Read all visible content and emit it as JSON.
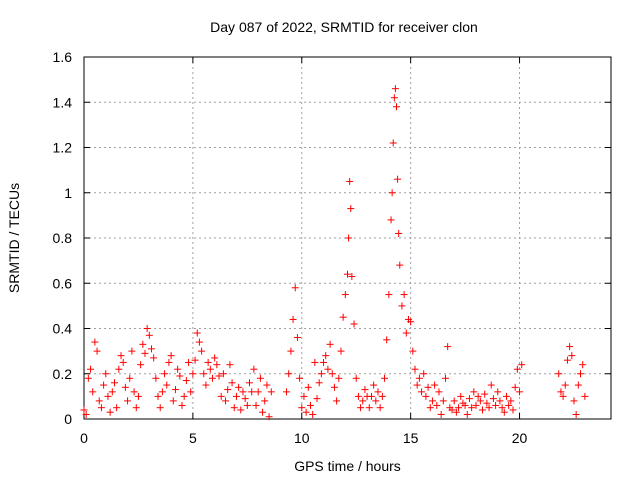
{
  "chart_data": {
    "type": "scatter",
    "title": "Day 087 of 2022, SRMTID for receiver clon",
    "xlabel": "GPS time / hours",
    "ylabel": "SRMTID / TECUs",
    "xlim": [
      0,
      24.2
    ],
    "ylim": [
      0,
      1.6
    ],
    "xticks": [
      0,
      5,
      10,
      15,
      20
    ],
    "xtick_labels": [
      "0",
      "5",
      "10",
      "15",
      "20"
    ],
    "yticks": [
      0,
      0.2,
      0.4,
      0.6,
      0.8,
      1.0,
      1.2,
      1.4,
      1.6
    ],
    "ytick_labels": [
      "0",
      "0.2",
      "0.4",
      "0.6",
      "0.8",
      "1",
      "1.2",
      "1.4",
      "1.6"
    ],
    "grid": true,
    "marker": "+",
    "color": "#ff0000",
    "series": [
      {
        "name": "SRMTID",
        "points": [
          [
            0.0,
            0.04
          ],
          [
            0.1,
            0.02
          ],
          [
            0.2,
            0.18
          ],
          [
            0.3,
            0.22
          ],
          [
            0.4,
            0.12
          ],
          [
            0.5,
            0.34
          ],
          [
            0.6,
            0.3
          ],
          [
            0.7,
            0.08
          ],
          [
            0.8,
            0.05
          ],
          [
            0.9,
            0.15
          ],
          [
            1.0,
            0.2
          ],
          [
            1.1,
            0.1
          ],
          [
            1.2,
            0.03
          ],
          [
            1.3,
            0.12
          ],
          [
            1.4,
            0.16
          ],
          [
            1.5,
            0.05
          ],
          [
            1.6,
            0.22
          ],
          [
            1.7,
            0.28
          ],
          [
            1.8,
            0.25
          ],
          [
            1.9,
            0.14
          ],
          [
            2.0,
            0.08
          ],
          [
            2.1,
            0.18
          ],
          [
            2.2,
            0.3
          ],
          [
            2.3,
            0.12
          ],
          [
            2.4,
            0.05
          ],
          [
            2.5,
            0.1
          ],
          [
            2.6,
            0.24
          ],
          [
            2.7,
            0.33
          ],
          [
            2.8,
            0.29
          ],
          [
            2.9,
            0.4
          ],
          [
            3.0,
            0.37
          ],
          [
            3.1,
            0.31
          ],
          [
            3.2,
            0.27
          ],
          [
            3.3,
            0.18
          ],
          [
            3.4,
            0.1
          ],
          [
            3.5,
            0.05
          ],
          [
            3.6,
            0.12
          ],
          [
            3.7,
            0.2
          ],
          [
            3.8,
            0.15
          ],
          [
            3.9,
            0.25
          ],
          [
            4.0,
            0.28
          ],
          [
            4.1,
            0.08
          ],
          [
            4.2,
            0.13
          ],
          [
            4.3,
            0.22
          ],
          [
            4.4,
            0.19
          ],
          [
            4.5,
            0.06
          ],
          [
            4.6,
            0.1
          ],
          [
            4.7,
            0.17
          ],
          [
            4.8,
            0.25
          ],
          [
            4.9,
            0.12
          ],
          [
            5.0,
            0.2
          ],
          [
            5.1,
            0.26
          ],
          [
            5.2,
            0.38
          ],
          [
            5.3,
            0.34
          ],
          [
            5.4,
            0.3
          ],
          [
            5.5,
            0.2
          ],
          [
            5.6,
            0.15
          ],
          [
            5.7,
            0.25
          ],
          [
            5.8,
            0.22
          ],
          [
            5.9,
            0.18
          ],
          [
            6.0,
            0.27
          ],
          [
            6.1,
            0.24
          ],
          [
            6.2,
            0.19
          ],
          [
            6.3,
            0.1
          ],
          [
            6.4,
            0.2
          ],
          [
            6.5,
            0.08
          ],
          [
            6.6,
            0.13
          ],
          [
            6.7,
            0.24
          ],
          [
            6.8,
            0.16
          ],
          [
            6.9,
            0.05
          ],
          [
            7.0,
            0.1
          ],
          [
            7.1,
            0.14
          ],
          [
            7.2,
            0.04
          ],
          [
            7.3,
            0.12
          ],
          [
            7.4,
            0.09
          ],
          [
            7.5,
            0.06
          ],
          [
            7.6,
            0.16
          ],
          [
            7.7,
            0.12
          ],
          [
            7.8,
            0.22
          ],
          [
            7.9,
            0.06
          ],
          [
            8.0,
            0.12
          ],
          [
            8.1,
            0.18
          ],
          [
            8.2,
            0.03
          ],
          [
            8.3,
            0.08
          ],
          [
            8.4,
            0.15
          ],
          [
            8.5,
            0.01
          ],
          [
            8.6,
            0.12
          ],
          [
            9.3,
            0.12
          ],
          [
            9.4,
            0.2
          ],
          [
            9.5,
            0.3
          ],
          [
            9.6,
            0.44
          ],
          [
            9.7,
            0.58
          ],
          [
            9.8,
            0.36
          ],
          [
            9.9,
            0.18
          ],
          [
            10.0,
            0.05
          ],
          [
            10.1,
            0.1
          ],
          [
            10.2,
            0.03
          ],
          [
            10.3,
            0.14
          ],
          [
            10.4,
            0.06
          ],
          [
            10.5,
            0.02
          ],
          [
            10.6,
            0.25
          ],
          [
            10.7,
            0.09
          ],
          [
            10.8,
            0.16
          ],
          [
            10.9,
            0.2
          ],
          [
            11.0,
            0.25
          ],
          [
            11.1,
            0.28
          ],
          [
            11.2,
            0.22
          ],
          [
            11.3,
            0.33
          ],
          [
            11.4,
            0.2
          ],
          [
            11.5,
            0.14
          ],
          [
            11.6,
            0.08
          ],
          [
            11.7,
            0.18
          ],
          [
            11.8,
            0.3
          ],
          [
            11.9,
            0.45
          ],
          [
            12.0,
            0.55
          ],
          [
            12.1,
            0.64
          ],
          [
            12.15,
            0.8
          ],
          [
            12.2,
            1.05
          ],
          [
            12.25,
            0.93
          ],
          [
            12.3,
            0.63
          ],
          [
            12.4,
            0.42
          ],
          [
            12.5,
            0.18
          ],
          [
            12.6,
            0.1
          ],
          [
            12.7,
            0.05
          ],
          [
            12.8,
            0.08
          ],
          [
            12.9,
            0.13
          ],
          [
            13.0,
            0.1
          ],
          [
            13.1,
            0.05
          ],
          [
            13.2,
            0.1
          ],
          [
            13.3,
            0.15
          ],
          [
            13.4,
            0.08
          ],
          [
            13.5,
            0.12
          ],
          [
            13.6,
            0.05
          ],
          [
            13.7,
            0.1
          ],
          [
            13.8,
            0.18
          ],
          [
            13.9,
            0.35
          ],
          [
            14.0,
            0.55
          ],
          [
            14.1,
            0.88
          ],
          [
            14.15,
            1.0
          ],
          [
            14.2,
            1.22
          ],
          [
            14.25,
            1.42
          ],
          [
            14.3,
            1.46
          ],
          [
            14.35,
            1.38
          ],
          [
            14.4,
            1.06
          ],
          [
            14.45,
            0.82
          ],
          [
            14.5,
            0.68
          ],
          [
            14.6,
            0.5
          ],
          [
            14.7,
            0.55
          ],
          [
            14.8,
            0.38
          ],
          [
            14.9,
            0.44
          ],
          [
            15.0,
            0.43
          ],
          [
            15.1,
            0.3
          ],
          [
            15.2,
            0.22
          ],
          [
            15.3,
            0.15
          ],
          [
            15.4,
            0.18
          ],
          [
            15.5,
            0.12
          ],
          [
            15.6,
            0.2
          ],
          [
            15.7,
            0.1
          ],
          [
            15.8,
            0.14
          ],
          [
            15.9,
            0.05
          ],
          [
            16.0,
            0.08
          ],
          [
            16.1,
            0.15
          ],
          [
            16.2,
            0.06
          ],
          [
            16.3,
            0.12
          ],
          [
            16.4,
            0.02
          ],
          [
            16.5,
            0.08
          ],
          [
            16.6,
            0.18
          ],
          [
            16.7,
            0.32
          ],
          [
            16.8,
            0.05
          ],
          [
            16.9,
            0.04
          ],
          [
            17.0,
            0.08
          ],
          [
            17.1,
            0.03
          ],
          [
            17.2,
            0.05
          ],
          [
            17.3,
            0.1
          ],
          [
            17.4,
            0.07
          ],
          [
            17.5,
            0.06
          ],
          [
            17.6,
            0.02
          ],
          [
            17.7,
            0.09
          ],
          [
            17.8,
            0.05
          ],
          [
            17.9,
            0.12
          ],
          [
            18.0,
            0.06
          ],
          [
            18.1,
            0.1
          ],
          [
            18.2,
            0.08
          ],
          [
            18.3,
            0.04
          ],
          [
            18.4,
            0.11
          ],
          [
            18.5,
            0.07
          ],
          [
            18.6,
            0.05
          ],
          [
            18.7,
            0.15
          ],
          [
            18.8,
            0.09
          ],
          [
            18.9,
            0.06
          ],
          [
            19.0,
            0.12
          ],
          [
            19.1,
            0.08
          ],
          [
            19.2,
            0.05
          ],
          [
            19.3,
            0.03
          ],
          [
            19.4,
            0.1
          ],
          [
            19.5,
            0.06
          ],
          [
            19.6,
            0.08
          ],
          [
            19.7,
            0.04
          ],
          [
            19.8,
            0.14
          ],
          [
            19.9,
            0.22
          ],
          [
            20.0,
            0.12
          ],
          [
            20.1,
            0.24
          ],
          [
            21.8,
            0.2
          ],
          [
            21.9,
            0.12
          ],
          [
            22.0,
            0.1
          ],
          [
            22.1,
            0.15
          ],
          [
            22.2,
            0.26
          ],
          [
            22.3,
            0.32
          ],
          [
            22.4,
            0.28
          ],
          [
            22.5,
            0.08
          ],
          [
            22.6,
            0.02
          ],
          [
            22.7,
            0.15
          ],
          [
            22.8,
            0.2
          ],
          [
            22.9,
            0.24
          ],
          [
            23.0,
            0.1
          ]
        ]
      }
    ]
  }
}
